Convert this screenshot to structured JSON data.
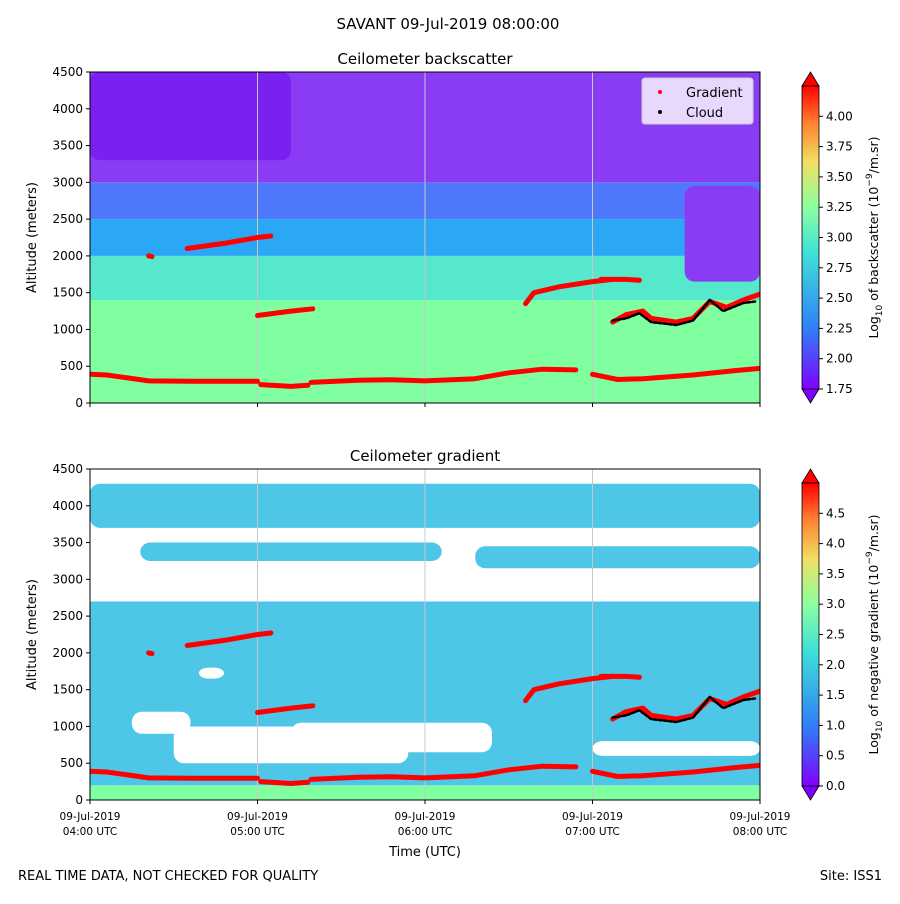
{
  "suptitle": "SAVANT 09-Jul-2019 08:00:00",
  "footer": {
    "left": "REAL TIME DATA, NOT CHECKED FOR QUALITY",
    "right": "Site: ISS1"
  },
  "chart_data": [
    {
      "type": "heatmap",
      "title": "Ceilometer backscatter",
      "ylabel": "Altitude (meters)",
      "xlabel": "",
      "xlim": [
        4.0,
        8.0
      ],
      "ylim": [
        0,
        4500
      ],
      "yticks": [
        0,
        500,
        1000,
        1500,
        2000,
        2500,
        3000,
        3500,
        4000,
        4500
      ],
      "xticks": [
        4,
        5,
        6,
        7,
        8
      ],
      "xtick_labels": [
        [
          "09-Jul-2019",
          "04:00 UTC"
        ],
        [
          "09-Jul-2019",
          "05:00 UTC"
        ],
        [
          "09-Jul-2019",
          "06:00 UTC"
        ],
        [
          "09-Jul-2019",
          "07:00 UTC"
        ],
        [
          "09-Jul-2019",
          "08:00 UTC"
        ]
      ],
      "show_xtick_labels": false,
      "grid": "vertical",
      "legend": {
        "placement": "top-right",
        "entries": [
          {
            "label": "Gradient",
            "color": "#ff0000"
          },
          {
            "label": "Cloud",
            "color": "#000000"
          }
        ]
      },
      "colorbar": {
        "label_prefix": "Log",
        "label_sub": "10",
        "label_mid": " of backscatter (10",
        "label_sup": "−9",
        "label_suffix": "/m.sr)",
        "range": [
          1.75,
          4.25
        ],
        "ticks": [
          "1.75",
          "2.00",
          "2.25",
          "2.50",
          "2.75",
          "3.00",
          "3.25",
          "3.50",
          "3.75",
          "4.00"
        ]
      },
      "field": {
        "layers": [
          {
            "from": 0,
            "to": 1400,
            "color": "#80ffa0"
          },
          {
            "from": 1400,
            "to": 2000,
            "color": "#55e8cc"
          },
          {
            "from": 2000,
            "to": 2500,
            "color": "#2aa8f5"
          },
          {
            "from": 2500,
            "to": 3000,
            "color": "#5078fa"
          },
          {
            "from": 3000,
            "to": 4500,
            "color": "#8a3cf5"
          }
        ],
        "patches": [
          {
            "x": 7.55,
            "y": 1650,
            "w": 0.45,
            "h": 1300,
            "color": "#8a3cf5"
          },
          {
            "x": 4.0,
            "y": 3300,
            "w": 1.2,
            "h": 1200,
            "color": "#7a20f0"
          }
        ]
      },
      "series": [
        {
          "name": "Gradient",
          "color": "#ff0000",
          "segments": [
            [
              [
                4.0,
                390
              ],
              [
                4.1,
                380
              ],
              [
                4.2,
                350
              ],
              [
                4.35,
                300
              ],
              [
                4.6,
                295
              ],
              [
                5.0,
                295
              ]
            ],
            [
              [
                5.02,
                250
              ],
              [
                5.2,
                225
              ],
              [
                5.3,
                240
              ]
            ],
            [
              [
                5.32,
                280
              ],
              [
                5.6,
                310
              ],
              [
                5.8,
                315
              ],
              [
                6.0,
                300
              ],
              [
                6.3,
                330
              ],
              [
                6.5,
                410
              ],
              [
                6.7,
                460
              ],
              [
                6.9,
                450
              ]
            ],
            [
              [
                7.0,
                390
              ],
              [
                7.15,
                320
              ],
              [
                7.3,
                330
              ],
              [
                7.6,
                380
              ],
              [
                7.85,
                440
              ],
              [
                8.0,
                470
              ]
            ],
            [
              [
                4.35,
                2000
              ],
              [
                4.37,
                1990
              ]
            ],
            [
              [
                4.58,
                2100
              ],
              [
                4.8,
                2170
              ],
              [
                5.0,
                2250
              ],
              [
                5.08,
                2270
              ]
            ],
            [
              [
                5.0,
                1190
              ],
              [
                5.2,
                1250
              ],
              [
                5.33,
                1280
              ]
            ],
            [
              [
                6.6,
                1350
              ],
              [
                6.65,
                1500
              ],
              [
                6.8,
                1580
              ],
              [
                7.0,
                1650
              ],
              [
                7.12,
                1680
              ]
            ],
            [
              [
                7.05,
                1680
              ],
              [
                7.2,
                1680
              ],
              [
                7.28,
                1670
              ]
            ],
            [
              [
                7.12,
                1100
              ],
              [
                7.2,
                1200
              ],
              [
                7.3,
                1250
              ],
              [
                7.35,
                1150
              ],
              [
                7.5,
                1100
              ],
              [
                7.6,
                1150
              ],
              [
                7.7,
                1380
              ],
              [
                7.8,
                1300
              ],
              [
                7.9,
                1400
              ],
              [
                8.0,
                1480
              ]
            ]
          ]
        },
        {
          "name": "Cloud",
          "color": "#000000",
          "segments": [
            [
              [
                7.12,
                1120
              ],
              [
                7.2,
                1150
              ],
              [
                7.28,
                1220
              ],
              [
                7.35,
                1100
              ],
              [
                7.5,
                1060
              ],
              [
                7.6,
                1120
              ],
              [
                7.7,
                1400
              ],
              [
                7.78,
                1250
              ],
              [
                7.9,
                1360
              ],
              [
                7.97,
                1380
              ]
            ]
          ]
        }
      ]
    },
    {
      "type": "heatmap",
      "title": "Ceilometer gradient",
      "ylabel": "Altitude (meters)",
      "xlabel": "Time (UTC)",
      "xlim": [
        4.0,
        8.0
      ],
      "ylim": [
        0,
        4500
      ],
      "yticks": [
        0,
        500,
        1000,
        1500,
        2000,
        2500,
        3000,
        3500,
        4000,
        4500
      ],
      "xticks": [
        4,
        5,
        6,
        7,
        8
      ],
      "xtick_labels": [
        [
          "09-Jul-2019",
          "04:00 UTC"
        ],
        [
          "09-Jul-2019",
          "05:00 UTC"
        ],
        [
          "09-Jul-2019",
          "06:00 UTC"
        ],
        [
          "09-Jul-2019",
          "07:00 UTC"
        ],
        [
          "09-Jul-2019",
          "08:00 UTC"
        ]
      ],
      "show_xtick_labels": true,
      "grid": "vertical",
      "colorbar": {
        "label_prefix": "Log",
        "label_sub": "10",
        "label_mid": " of negative gradient (10",
        "label_sup": "−9",
        "label_suffix": "/m.sr)",
        "range": [
          0.0,
          5.0
        ],
        "ticks": [
          "0.0",
          "0.5",
          "1.0",
          "1.5",
          "2.0",
          "2.5",
          "3.0",
          "3.5",
          "4.0",
          "4.5"
        ]
      },
      "field": {
        "layers": [
          {
            "from": 0,
            "to": 200,
            "color": "#80ffa0"
          },
          {
            "from": 200,
            "to": 2700,
            "color": "#4ec6e8"
          },
          {
            "from": 2700,
            "to": 4500,
            "color": "#ffffff"
          }
        ],
        "patches": [
          {
            "x": 4.25,
            "y": 900,
            "w": 0.35,
            "h": 300,
            "color": "#ffffff"
          },
          {
            "x": 4.5,
            "y": 500,
            "w": 1.4,
            "h": 500,
            "color": "#ffffff"
          },
          {
            "x": 5.2,
            "y": 650,
            "w": 1.2,
            "h": 400,
            "color": "#ffffff"
          },
          {
            "x": 4.65,
            "y": 1650,
            "w": 0.15,
            "h": 150,
            "color": "#ffffff"
          },
          {
            "x": 7.0,
            "y": 600,
            "w": 1.0,
            "h": 200,
            "color": "#ffffff"
          },
          {
            "x": 4.0,
            "y": 3700,
            "w": 4.0,
            "h": 600,
            "color": "#4ec6e8"
          },
          {
            "x": 4.3,
            "y": 3250,
            "w": 1.8,
            "h": 250,
            "color": "#4ec6e8"
          },
          {
            "x": 6.3,
            "y": 3150,
            "w": 1.7,
            "h": 300,
            "color": "#4ec6e8"
          }
        ]
      },
      "series": [
        {
          "name": "Gradient",
          "color": "#ff0000",
          "segments": [
            [
              [
                4.0,
                390
              ],
              [
                4.1,
                380
              ],
              [
                4.2,
                350
              ],
              [
                4.35,
                300
              ],
              [
                4.6,
                295
              ],
              [
                5.0,
                295
              ]
            ],
            [
              [
                5.02,
                250
              ],
              [
                5.2,
                225
              ],
              [
                5.3,
                240
              ]
            ],
            [
              [
                5.32,
                280
              ],
              [
                5.6,
                310
              ],
              [
                5.8,
                315
              ],
              [
                6.0,
                300
              ],
              [
                6.3,
                330
              ],
              [
                6.5,
                410
              ],
              [
                6.7,
                460
              ],
              [
                6.9,
                450
              ]
            ],
            [
              [
                7.0,
                390
              ],
              [
                7.15,
                320
              ],
              [
                7.3,
                330
              ],
              [
                7.6,
                380
              ],
              [
                7.85,
                440
              ],
              [
                8.0,
                470
              ]
            ],
            [
              [
                4.35,
                2000
              ],
              [
                4.37,
                1990
              ]
            ],
            [
              [
                4.58,
                2100
              ],
              [
                4.8,
                2170
              ],
              [
                5.0,
                2250
              ],
              [
                5.08,
                2270
              ]
            ],
            [
              [
                5.0,
                1190
              ],
              [
                5.2,
                1250
              ],
              [
                5.33,
                1280
              ]
            ],
            [
              [
                6.6,
                1350
              ],
              [
                6.65,
                1500
              ],
              [
                6.8,
                1580
              ],
              [
                7.0,
                1650
              ],
              [
                7.12,
                1680
              ]
            ],
            [
              [
                7.05,
                1680
              ],
              [
                7.2,
                1680
              ],
              [
                7.28,
                1670
              ]
            ],
            [
              [
                7.12,
                1100
              ],
              [
                7.2,
                1200
              ],
              [
                7.3,
                1250
              ],
              [
                7.35,
                1150
              ],
              [
                7.5,
                1100
              ],
              [
                7.6,
                1150
              ],
              [
                7.7,
                1380
              ],
              [
                7.8,
                1300
              ],
              [
                7.9,
                1400
              ],
              [
                8.0,
                1480
              ]
            ]
          ]
        },
        {
          "name": "Cloud",
          "color": "#000000",
          "segments": [
            [
              [
                7.12,
                1120
              ],
              [
                7.2,
                1150
              ],
              [
                7.28,
                1220
              ],
              [
                7.35,
                1100
              ],
              [
                7.5,
                1060
              ],
              [
                7.6,
                1120
              ],
              [
                7.7,
                1400
              ],
              [
                7.78,
                1250
              ],
              [
                7.9,
                1360
              ],
              [
                7.97,
                1380
              ]
            ]
          ]
        }
      ]
    }
  ]
}
